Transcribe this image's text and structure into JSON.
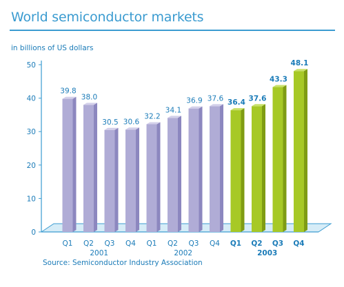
{
  "chart_data": {
    "type": "bar",
    "title": "World semiconductor markets",
    "ylabel": "in billions of US dollars",
    "ylim": [
      0,
      50
    ],
    "yticks": [
      0,
      10,
      20,
      30,
      40,
      50
    ],
    "grid": false,
    "categories": [
      "Q1",
      "Q2",
      "Q3",
      "Q4",
      "Q1",
      "Q2",
      "Q3",
      "Q4",
      "Q1",
      "Q2",
      "Q3",
      "Q4"
    ],
    "years": [
      {
        "label": "2001",
        "quarters": [
          0,
          3
        ]
      },
      {
        "label": "2002",
        "quarters": [
          4,
          7
        ]
      },
      {
        "label": "2003",
        "quarters": [
          8,
          11
        ]
      }
    ],
    "values": [
      39.8,
      38.0,
      30.5,
      30.6,
      32.2,
      34.1,
      36.9,
      37.6,
      36.4,
      37.6,
      43.3,
      48.1
    ],
    "value_labels": [
      "39.8",
      "38.0",
      "30.5",
      "30.6",
      "32.2",
      "34.1",
      "36.9",
      "37.6",
      "36.4",
      "37.6",
      "43.3",
      "48.1"
    ],
    "highlight": [
      false,
      false,
      false,
      false,
      false,
      false,
      false,
      false,
      true,
      true,
      true,
      true
    ],
    "colors": {
      "bar": "#b0acd6",
      "bar_side": "#8c87bf",
      "bar_top": "#d3d0ea",
      "bar_highlight": "#a7c926",
      "bar_highlight_side": "#7f9c14",
      "bar_highlight_top": "#c9e06a",
      "axis": "#3a9bd0",
      "floor": "#d6ecf7",
      "text": "#1a7bb8"
    },
    "source": "Source: Semiconductor Industry Association"
  }
}
